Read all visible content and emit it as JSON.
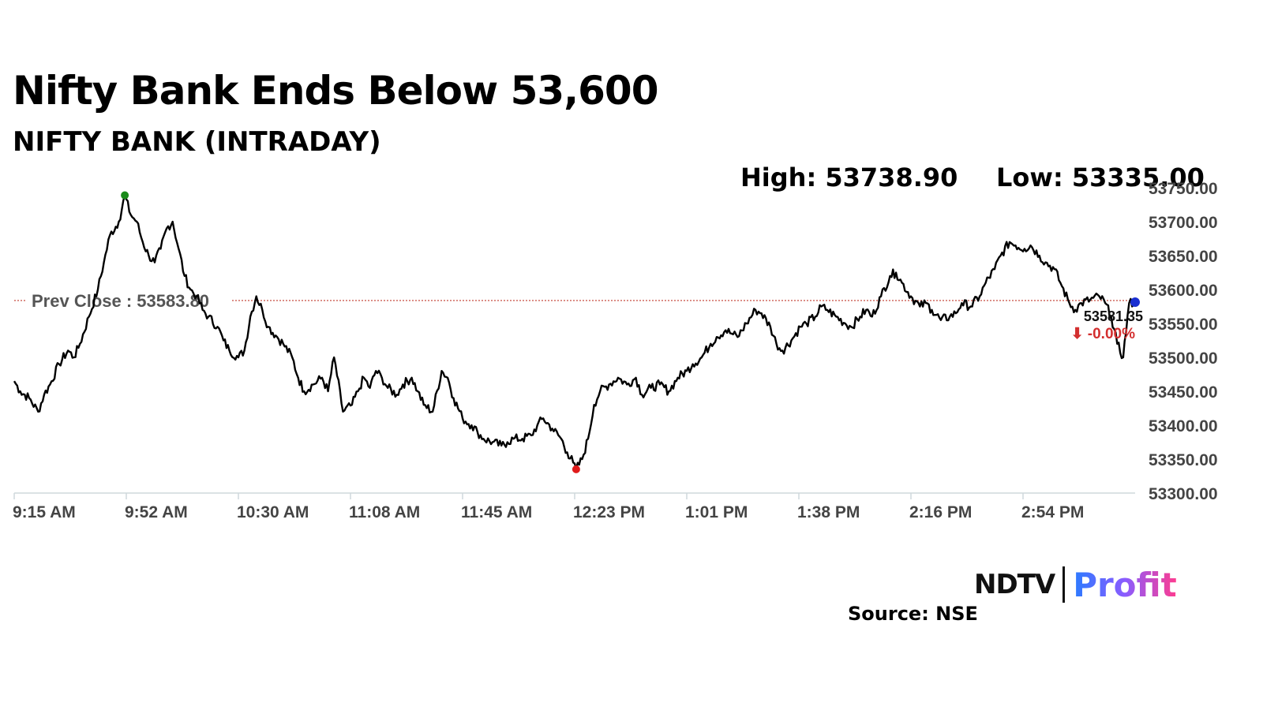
{
  "header": {
    "title": "Nifty Bank Ends Below 53,600",
    "subtitle": "NIFTY BANK (INTRADAY)"
  },
  "stats": {
    "high_label": "High: 53738.90",
    "low_label": "Low: 53335.00"
  },
  "footer": {
    "source": "Source: NSE",
    "logo_left": "NDTV",
    "logo_right": "Profit"
  },
  "colors": {
    "line": "#000000",
    "high_marker": "#1a8a1a",
    "low_marker": "#e01b1b",
    "last_marker": "#1a2fd1",
    "prev_close_line": "#c0392b",
    "change_text": "#d32f2f"
  },
  "chart_data": {
    "type": "line",
    "ylim": [
      53300,
      53750
    ],
    "y_ticks": [
      "53750.00",
      "53700.00",
      "53650.00",
      "53600.00",
      "53550.00",
      "53500.00",
      "53450.00",
      "53400.00",
      "53350.00",
      "53300.00"
    ],
    "x_ticks": [
      "9:15 AM",
      "9:52 AM",
      "10:30 AM",
      "11:08 AM",
      "11:45 AM",
      "12:23 PM",
      "1:01 PM",
      "1:38 PM",
      "2:16 PM",
      "2:54 PM"
    ],
    "x_range_minutes": [
      555,
      930
    ],
    "prev_close": 53583.8,
    "prev_close_label": "Prev Close : 53583.80",
    "high": {
      "time": "9:52 AM",
      "minute": 592,
      "value": 53738.9
    },
    "low": {
      "time": "12:23 PM",
      "minute": 743,
      "value": 53335.0
    },
    "last": {
      "minute": 930,
      "value": 53581.35,
      "label": "53581.35",
      "change_label": "⬇ -0.00%"
    },
    "series": [
      {
        "minutes": [
          555,
          557,
          560,
          563,
          565,
          567,
          570,
          573,
          575,
          577,
          580,
          583,
          585,
          587,
          590,
          592,
          594,
          596,
          598,
          600,
          602,
          604,
          606,
          608,
          610,
          612,
          614,
          616,
          618,
          620,
          623,
          625,
          627,
          630,
          632,
          634,
          636,
          638,
          640,
          643,
          645,
          648,
          650,
          652,
          655,
          658,
          660,
          662,
          665,
          668,
          670,
          672,
          674,
          676,
          678,
          680,
          683,
          685,
          688,
          690,
          692,
          695,
          698,
          700,
          702,
          705,
          708,
          710,
          712,
          715,
          718,
          720,
          722,
          725,
          728,
          730,
          732,
          735,
          738,
          740,
          742,
          743,
          745,
          747,
          749,
          751,
          754,
          757,
          760,
          763,
          765,
          768,
          771,
          774,
          777,
          780,
          782,
          785,
          788,
          790,
          793,
          795,
          797,
          800,
          803,
          805,
          808,
          810,
          812,
          815,
          818,
          820,
          823,
          825,
          827,
          830,
          833,
          835,
          838,
          840,
          842,
          845,
          848,
          850,
          852,
          855,
          858,
          860,
          862,
          865,
          868,
          870,
          872,
          875,
          878,
          880,
          883,
          885,
          888,
          890,
          893,
          895,
          898,
          900,
          903,
          905,
          908,
          910,
          912,
          915,
          918,
          920,
          922,
          924,
          926,
          928,
          930
        ],
        "values": [
          53465,
          53450,
          53440,
          53420,
          53445,
          53460,
          53490,
          53510,
          53500,
          53520,
          53560,
          53600,
          53640,
          53680,
          53700,
          53738,
          53710,
          53700,
          53670,
          53650,
          53640,
          53660,
          53690,
          53700,
          53660,
          53620,
          53600,
          53590,
          53570,
          53560,
          53545,
          53525,
          53510,
          53500,
          53510,
          53560,
          53590,
          53570,
          53545,
          53530,
          53520,
          53500,
          53470,
          53450,
          53460,
          53470,
          53450,
          53500,
          53420,
          53430,
          53450,
          53470,
          53455,
          53480,
          53470,
          53455,
          53445,
          53460,
          53470,
          53450,
          53430,
          53420,
          53480,
          53470,
          53440,
          53410,
          53400,
          53390,
          53380,
          53375,
          53370,
          53375,
          53380,
          53380,
          53385,
          53400,
          53410,
          53395,
          53380,
          53360,
          53345,
          53335,
          53350,
          53380,
          53430,
          53450,
          53460,
          53470,
          53460,
          53470,
          53445,
          53455,
          53460,
          53450,
          53470,
          53480,
          53490,
          53500,
          53520,
          53530,
          53540,
          53535,
          53530,
          53550,
          53570,
          53565,
          53545,
          53520,
          53510,
          53525,
          53545,
          53550,
          53560,
          53575,
          53570,
          53560,
          53550,
          53545,
          53560,
          53570,
          53560,
          53590,
          53620,
          53625,
          53610,
          53590,
          53575,
          53580,
          53570,
          53555,
          53560,
          53565,
          53580,
          53575,
          53590,
          53610,
          53630,
          53650,
          53670,
          53665,
          53660,
          53665,
          53650,
          53640,
          53630,
          53610,
          53580,
          53570,
          53580,
          53585,
          53590,
          53580,
          53560,
          53520,
          53500,
          53580,
          53581.35
        ]
      }
    ]
  }
}
